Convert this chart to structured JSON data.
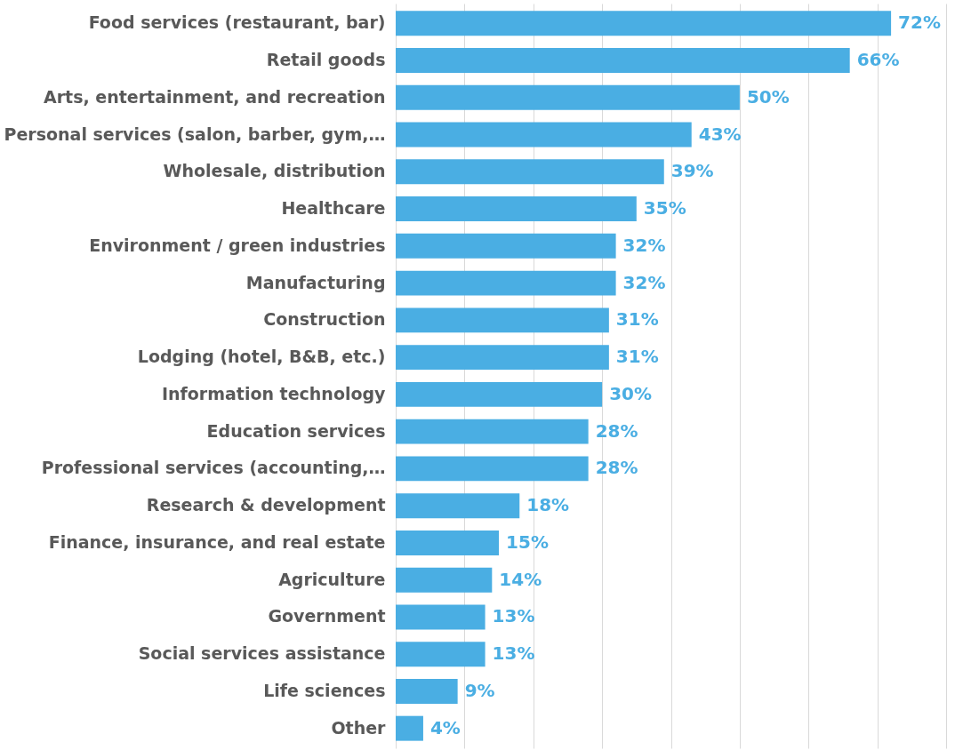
{
  "chart_data": {
    "type": "bar",
    "orientation": "horizontal",
    "categories": [
      "Food services (restaurant, bar)",
      "Retail goods",
      "Arts, entertainment, and recreation",
      "Personal services (salon, barber, gym,…",
      "Wholesale, distribution",
      "Healthcare",
      "Environment / green industries",
      "Manufacturing",
      "Construction",
      "Lodging (hotel, B&B, etc.)",
      "Information technology",
      "Education services",
      "Professional services (accounting,…",
      "Research & development",
      "Finance, insurance, and real estate",
      "Agriculture",
      "Government",
      "Social services assistance",
      "Life sciences",
      "Other"
    ],
    "values": [
      72,
      66,
      50,
      43,
      39,
      35,
      32,
      32,
      31,
      31,
      30,
      28,
      28,
      18,
      15,
      14,
      13,
      13,
      9,
      4
    ],
    "value_labels": [
      "72%",
      "66%",
      "50%",
      "43%",
      "39%",
      "35%",
      "32%",
      "32%",
      "31%",
      "31%",
      "30%",
      "28%",
      "28%",
      "18%",
      "15%",
      "14%",
      "13%",
      "13%",
      "9%",
      "4%"
    ],
    "color": "#4aaee3",
    "xlim": [
      0,
      80
    ],
    "xticks": [
      {
        "value": 0,
        "label": null
      },
      {
        "value": 10,
        "label": null
      },
      {
        "value": 20,
        "label": null
      },
      {
        "value": 30,
        "label": null
      },
      {
        "value": 40,
        "label": null
      },
      {
        "value": 50,
        "label": null
      },
      {
        "value": 60,
        "label": null
      },
      {
        "value": 70,
        "label": null
      },
      {
        "value": 80,
        "label": null
      }
    ],
    "grid": "x",
    "tick_labels": "y"
  }
}
